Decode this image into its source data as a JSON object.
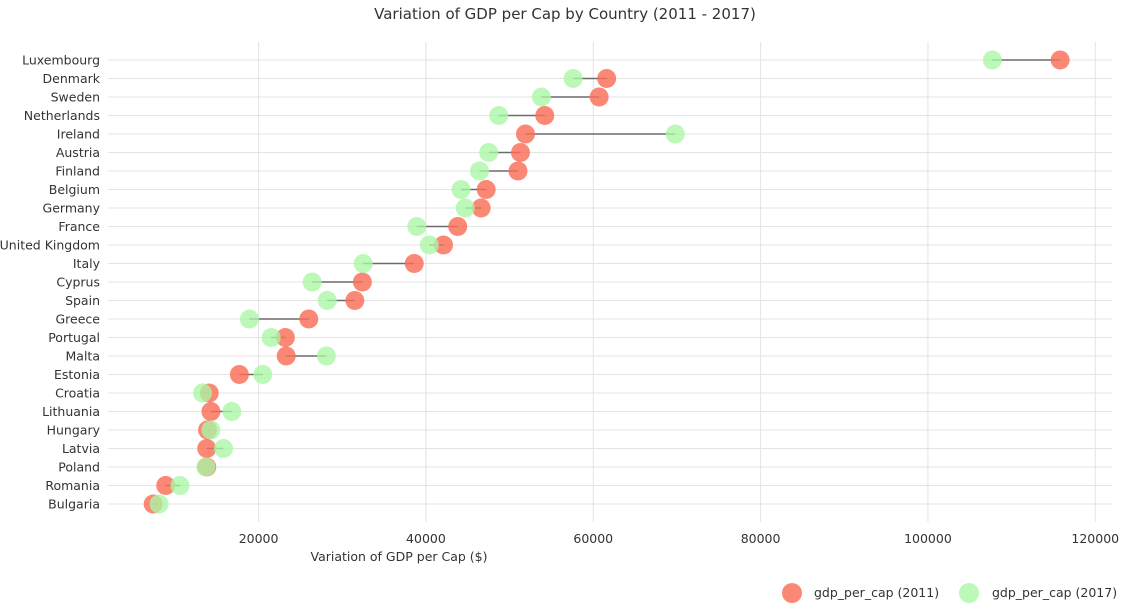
{
  "chart_data": {
    "type": "dumbbell",
    "title": "Variation of GDP per Cap by Country (2011 - 2017)",
    "xlabel": "Variation of GDP per Cap ($)",
    "ylabel": "",
    "xlim": [
      2000,
      122000
    ],
    "xticks": [
      20000,
      40000,
      60000,
      80000,
      100000,
      120000
    ],
    "xtick_labels": [
      "20000",
      "40000",
      "60000",
      "80000",
      "100000",
      "120000"
    ],
    "grid": true,
    "legend_position": "bottom-right",
    "categories": [
      "Luxembourg",
      "Denmark",
      "Sweden",
      "Netherlands",
      "Ireland",
      "Austria",
      "Finland",
      "Belgium",
      "Germany",
      "France",
      "United Kingdom",
      "Italy",
      "Cyprus",
      "Spain",
      "Greece",
      "Portugal",
      "Malta",
      "Estonia",
      "Croatia",
      "Lithuania",
      "Hungary",
      "Latvia",
      "Poland",
      "Romania",
      "Bulgaria"
    ],
    "series": [
      {
        "name": "gdp_per_cap (2011)",
        "color": "#fa6e57",
        "values": [
          115800,
          61600,
          60700,
          54200,
          51900,
          51300,
          51000,
          47200,
          46600,
          43800,
          42100,
          38600,
          32400,
          31500,
          26000,
          23200,
          23300,
          17700,
          14100,
          14300,
          13900,
          13800,
          13800,
          8900,
          7400
        ]
      },
      {
        "name": "gdp_per_cap (2017)",
        "color": "#a9f7a4",
        "values": [
          107700,
          57600,
          53800,
          48700,
          69800,
          47500,
          46400,
          44200,
          44700,
          38900,
          40400,
          32500,
          26400,
          28200,
          18900,
          21500,
          28100,
          20500,
          13300,
          16800,
          14300,
          15800,
          13700,
          10600,
          8100
        ]
      }
    ]
  }
}
